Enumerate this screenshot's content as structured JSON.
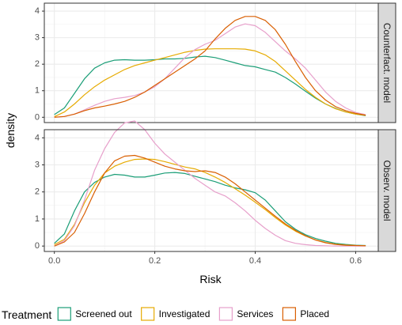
{
  "chart_data": {
    "type": "line",
    "xlabel": "Risk",
    "ylabel": "density",
    "xlim": [
      -0.02,
      0.645
    ],
    "ylim": [
      -0.2,
      4.3
    ],
    "xticks": [
      0.0,
      0.2,
      0.4,
      0.6
    ],
    "xtick_labels": [
      "0.0",
      "0.2",
      "0.4",
      "0.6"
    ],
    "yticks": [
      0,
      1,
      2,
      3,
      4
    ],
    "ytick_labels": [
      "0",
      "1",
      "2",
      "3",
      "4"
    ],
    "grid": true,
    "legend_position": "bottom",
    "legend_title": "Treatment",
    "series_styles": [
      {
        "name": "Screened out",
        "color": "#1B9E77"
      },
      {
        "name": "Investigated",
        "color": "#E6AB02"
      },
      {
        "name": "Services",
        "color": "#E7A0CB"
      },
      {
        "name": "Placed",
        "color": "#D95F02"
      }
    ],
    "x": [
      0.0,
      0.02,
      0.04,
      0.06,
      0.08,
      0.1,
      0.12,
      0.14,
      0.16,
      0.18,
      0.2,
      0.22,
      0.24,
      0.26,
      0.28,
      0.3,
      0.32,
      0.34,
      0.36,
      0.38,
      0.4,
      0.42,
      0.44,
      0.46,
      0.48,
      0.5,
      0.52,
      0.54,
      0.56,
      0.58,
      0.6,
      0.62
    ],
    "panels": [
      {
        "strip": "Counterfact. model",
        "series": [
          {
            "name": "Screened out",
            "values": [
              0.1,
              0.35,
              0.9,
              1.45,
              1.85,
              2.05,
              2.15,
              2.17,
              2.15,
              2.15,
              2.17,
              2.2,
              2.2,
              2.22,
              2.27,
              2.3,
              2.25,
              2.15,
              2.05,
              1.95,
              1.9,
              1.8,
              1.7,
              1.5,
              1.25,
              0.98,
              0.72,
              0.5,
              0.33,
              0.2,
              0.12,
              0.06
            ]
          },
          {
            "name": "Investigated",
            "values": [
              0.02,
              0.2,
              0.5,
              0.85,
              1.15,
              1.4,
              1.6,
              1.8,
              1.95,
              2.05,
              2.15,
              2.25,
              2.35,
              2.45,
              2.52,
              2.57,
              2.58,
              2.58,
              2.58,
              2.57,
              2.5,
              2.35,
              2.1,
              1.75,
              1.4,
              1.05,
              0.75,
              0.5,
              0.32,
              0.2,
              0.12,
              0.07
            ]
          },
          {
            "name": "Services",
            "values": [
              0.0,
              0.03,
              0.12,
              0.28,
              0.45,
              0.6,
              0.7,
              0.75,
              0.82,
              0.95,
              1.15,
              1.45,
              1.85,
              2.25,
              2.55,
              2.75,
              2.9,
              3.15,
              3.4,
              3.52,
              3.45,
              3.2,
              2.85,
              2.5,
              2.2,
              1.85,
              1.4,
              0.95,
              0.6,
              0.35,
              0.18,
              0.1
            ]
          },
          {
            "name": "Placed",
            "values": [
              0.0,
              0.03,
              0.12,
              0.25,
              0.35,
              0.42,
              0.5,
              0.6,
              0.75,
              0.95,
              1.2,
              1.45,
              1.7,
              1.95,
              2.2,
              2.5,
              2.95,
              3.35,
              3.65,
              3.8,
              3.8,
              3.65,
              3.3,
              2.75,
              2.1,
              1.5,
              1.0,
              0.65,
              0.4,
              0.25,
              0.15,
              0.08
            ]
          }
        ]
      },
      {
        "strip": "Observ. model",
        "series": [
          {
            "name": "Screened out",
            "values": [
              0.1,
              0.45,
              1.3,
              2.0,
              2.35,
              2.55,
              2.65,
              2.62,
              2.55,
              2.55,
              2.62,
              2.7,
              2.72,
              2.68,
              2.58,
              2.48,
              2.38,
              2.25,
              2.15,
              2.08,
              1.97,
              1.7,
              1.3,
              0.9,
              0.62,
              0.42,
              0.28,
              0.18,
              0.1,
              0.06,
              0.03,
              0.02
            ]
          },
          {
            "name": "Investigated",
            "values": [
              0.05,
              0.25,
              0.8,
              1.6,
              2.25,
              2.7,
              2.95,
              3.1,
              3.2,
              3.22,
              3.2,
              3.12,
              3.02,
              2.92,
              2.85,
              2.72,
              2.55,
              2.35,
              2.12,
              1.88,
              1.62,
              1.35,
              1.05,
              0.78,
              0.55,
              0.37,
              0.23,
              0.13,
              0.07,
              0.04,
              0.02,
              0.01
            ]
          },
          {
            "name": "Services",
            "values": [
              0.0,
              0.2,
              0.75,
              1.7,
              2.8,
              3.6,
              4.2,
              4.55,
              4.62,
              4.3,
              3.8,
              3.4,
              3.1,
              2.8,
              2.5,
              2.25,
              2.0,
              1.85,
              1.6,
              1.3,
              0.95,
              0.65,
              0.4,
              0.2,
              0.1,
              0.05,
              0.02,
              0.01,
              0.0,
              0.0,
              0.0,
              0.0
            ]
          },
          {
            "name": "Placed",
            "values": [
              0.0,
              0.15,
              0.5,
              1.2,
              2.0,
              2.7,
              3.15,
              3.32,
              3.35,
              3.25,
              3.1,
              2.95,
              2.85,
              2.78,
              2.75,
              2.78,
              2.72,
              2.55,
              2.3,
              2.0,
              1.7,
              1.4,
              1.1,
              0.82,
              0.58,
              0.38,
              0.22,
              0.12,
              0.06,
              0.03,
              0.02,
              0.01
            ]
          }
        ]
      }
    ]
  }
}
